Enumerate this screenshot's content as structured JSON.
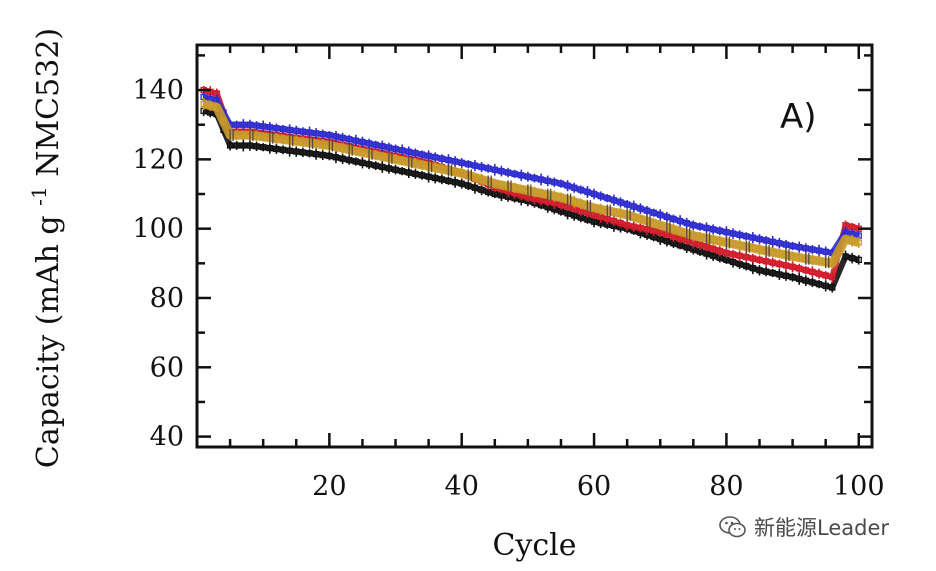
{
  "chart_data": {
    "type": "scatter",
    "title": "",
    "panel_label": "A)",
    "xlabel": "Cycle",
    "ylabel": "Capacity (mAh g",
    "ylabel_superscript": "-1",
    "ylabel_suffix": " NMC532)",
    "xlim": [
      0,
      102
    ],
    "ylim": [
      37,
      153
    ],
    "x_ticks": [
      20,
      40,
      60,
      80,
      100
    ],
    "y_ticks": [
      40,
      60,
      80,
      100,
      120,
      140
    ],
    "series": [
      {
        "name": "black",
        "color": "#111111",
        "x": [
          1,
          3,
          5,
          8,
          12,
          16,
          20,
          25,
          30,
          35,
          40,
          45,
          50,
          55,
          60,
          65,
          70,
          75,
          80,
          85,
          90,
          96,
          98,
          100
        ],
        "y": [
          134,
          133,
          124,
          124,
          123,
          122,
          121,
          119,
          117,
          115,
          113,
          110,
          108,
          105,
          102,
          100,
          97,
          94,
          91,
          88,
          86,
          83,
          92,
          91
        ]
      },
      {
        "name": "red",
        "color": "#d11a2a",
        "x": [
          1,
          3,
          5,
          8,
          12,
          16,
          20,
          25,
          30,
          35,
          40,
          45,
          50,
          55,
          60,
          65,
          70,
          75,
          80,
          85,
          90,
          96,
          98,
          100
        ],
        "y": [
          140,
          139,
          128,
          128,
          127,
          126,
          125,
          123,
          121,
          119,
          116,
          112,
          109,
          107,
          104,
          101,
          99,
          96,
          93,
          91,
          89,
          86,
          101,
          100
        ]
      },
      {
        "name": "blue",
        "color": "#2f2ccf",
        "x": [
          1,
          3,
          5,
          8,
          12,
          16,
          20,
          25,
          30,
          35,
          40,
          45,
          50,
          55,
          60,
          65,
          70,
          75,
          80,
          85,
          90,
          96,
          98,
          100
        ],
        "y": [
          138,
          137,
          130,
          130,
          129,
          128,
          127,
          125,
          123,
          121,
          119,
          117,
          115,
          113,
          110,
          107,
          104,
          101,
          99,
          97,
          95,
          93,
          99,
          98
        ]
      },
      {
        "name": "gold",
        "color": "#c89a2a",
        "x": [
          1,
          3,
          5,
          8,
          12,
          16,
          20,
          25,
          30,
          35,
          40,
          45,
          50,
          55,
          60,
          65,
          70,
          75,
          80,
          85,
          90,
          96,
          98,
          100
        ],
        "y": [
          136,
          135,
          127,
          127,
          126,
          125,
          124,
          122,
          120,
          118,
          116,
          113,
          111,
          109,
          106,
          104,
          101,
          98,
          96,
          94,
          92,
          90,
          97,
          96
        ]
      }
    ]
  },
  "watermark": {
    "text": "新能源Leader",
    "icon": "wechat-icon"
  }
}
